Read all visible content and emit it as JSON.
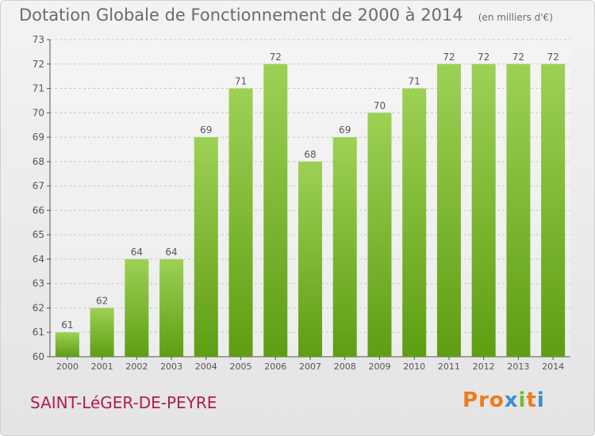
{
  "header": {
    "title": "Dotation Globale de Fonctionnement de 2000 à 2014",
    "unit": "(en milliers d'€)"
  },
  "footer": {
    "town": "SAINT-LéGER-DE-PEYRE",
    "logo": "Proxiti"
  },
  "colors": {
    "bar_top": "#9dd155",
    "bar_bottom": "#5e9e12",
    "title": "#6b6b6b",
    "town": "#b11b53",
    "logo_letters": [
      "#ef7a1a",
      "#ef7a1a",
      "#ef7a1a",
      "#3a8fd1",
      "#7ab82b",
      "#ef7a1a",
      "#3a8fd1"
    ]
  },
  "chart_data": {
    "type": "bar",
    "title": "Dotation Globale de Fonctionnement de 2000 à 2014",
    "subtitle": "(en milliers d'€)",
    "xlabel": "",
    "ylabel": "",
    "categories": [
      "2000",
      "2001",
      "2002",
      "2003",
      "2004",
      "2005",
      "2006",
      "2007",
      "2008",
      "2009",
      "2010",
      "2011",
      "2012",
      "2013",
      "2014"
    ],
    "values": [
      61,
      62,
      64,
      64,
      69,
      71,
      72,
      68,
      69,
      70,
      71,
      72,
      72,
      72,
      72
    ],
    "ylim": [
      60,
      73
    ],
    "yticks": [
      60,
      61,
      62,
      63,
      64,
      65,
      66,
      67,
      68,
      69,
      70,
      71,
      72,
      73
    ],
    "grid": true
  }
}
